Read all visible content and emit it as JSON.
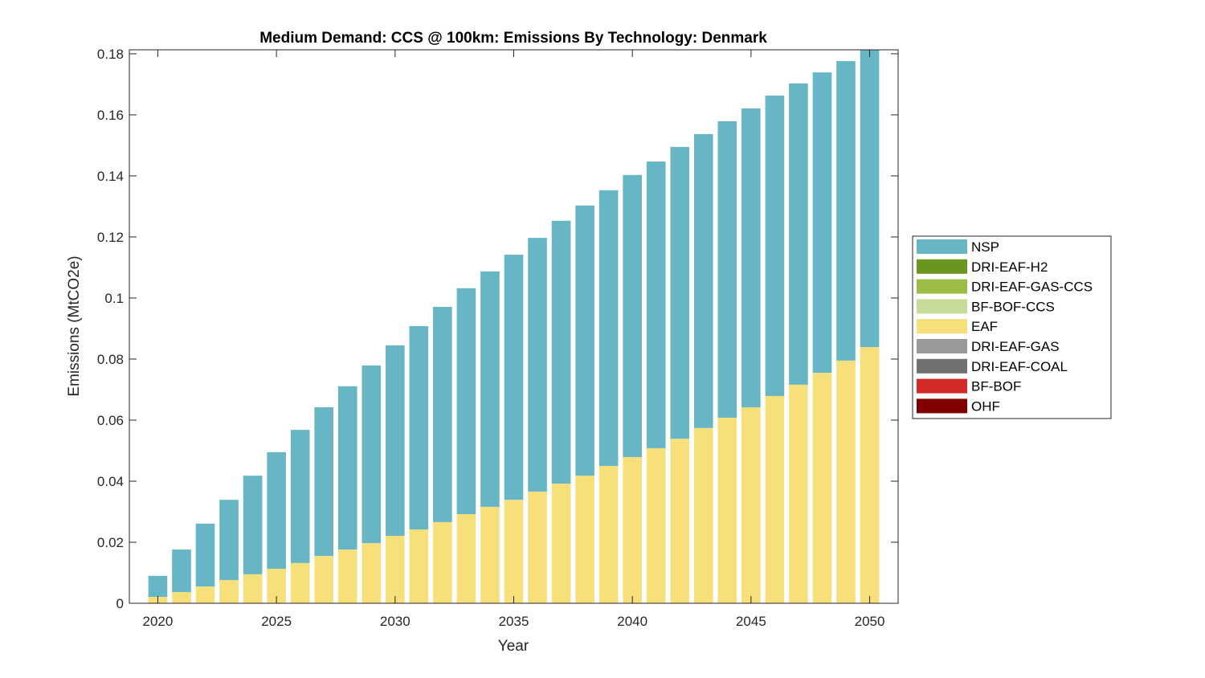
{
  "chart_data": {
    "type": "bar",
    "stacked": true,
    "title": "Medium Demand: CCS @ 100km: Emissions By Technology: Denmark",
    "xlabel": "Year",
    "ylabel": "Emissions (MtCO2e)",
    "xlim": [
      2018.8,
      2051.2
    ],
    "ylim": [
      0,
      0.1813
    ],
    "xticks": [
      2020,
      2025,
      2030,
      2035,
      2040,
      2045,
      2050
    ],
    "xtick_labels": [
      "2020",
      "2025",
      "2030",
      "2035",
      "2040",
      "2045",
      "2050"
    ],
    "yticks": [
      0,
      0.02,
      0.04,
      0.06,
      0.08,
      0.1,
      0.12,
      0.14,
      0.16,
      0.18
    ],
    "ytick_labels": [
      "0",
      "0.02",
      "0.04",
      "0.06",
      "0.08",
      "0.1",
      "0.12",
      "0.14",
      "0.16",
      "0.18"
    ],
    "legend_position": "outside-right",
    "x": [
      2020,
      2021,
      2022,
      2023,
      2024,
      2025,
      2026,
      2027,
      2028,
      2029,
      2030,
      2031,
      2032,
      2033,
      2034,
      2035,
      2036,
      2037,
      2038,
      2039,
      2040,
      2041,
      2042,
      2043,
      2044,
      2045,
      2046,
      2047,
      2048,
      2049,
      2050
    ],
    "series": [
      {
        "name": "OHF",
        "color": "#800000",
        "values": [
          0,
          0,
          0,
          0,
          0,
          0,
          0,
          0,
          0,
          0,
          0,
          0,
          0,
          0,
          0,
          0,
          0,
          0,
          0,
          0,
          0,
          0,
          0,
          0,
          0,
          0,
          0,
          0,
          0,
          0,
          0
        ]
      },
      {
        "name": "BF-BOF",
        "color": "#D22B27",
        "values": [
          0,
          0,
          0,
          0,
          0,
          0,
          0,
          0,
          0,
          0,
          0,
          0,
          0,
          0,
          0,
          0,
          0,
          0,
          0,
          0,
          0,
          0,
          0,
          0,
          0,
          0,
          0,
          0,
          0,
          0,
          0
        ]
      },
      {
        "name": "DRI-EAF-COAL",
        "color": "#707070",
        "values": [
          0,
          0,
          0,
          0,
          0,
          0,
          0,
          0,
          0,
          0,
          0,
          0,
          0,
          0,
          0,
          0,
          0,
          0,
          0,
          0,
          0,
          0,
          0,
          0,
          0,
          0,
          0,
          0,
          0,
          0,
          0
        ]
      },
      {
        "name": "DRI-EAF-GAS",
        "color": "#999999",
        "values": [
          0,
          0,
          0,
          0,
          0,
          0,
          0,
          0,
          0,
          0,
          0,
          0,
          0,
          0,
          0,
          0,
          0,
          0,
          0,
          0,
          0,
          0,
          0,
          0,
          0,
          0,
          0,
          0,
          0,
          0,
          0
        ]
      },
      {
        "name": "EAF",
        "color": "#F7DF7A",
        "values": [
          0.0021,
          0.0037,
          0.0055,
          0.0076,
          0.0095,
          0.0113,
          0.0132,
          0.0155,
          0.0176,
          0.0197,
          0.0221,
          0.0242,
          0.0266,
          0.0292,
          0.0316,
          0.0339,
          0.0366,
          0.0392,
          0.0418,
          0.045,
          0.0479,
          0.0508,
          0.0539,
          0.0574,
          0.0608,
          0.0642,
          0.0679,
          0.0716,
          0.0755,
          0.0795,
          0.0839
        ]
      },
      {
        "name": "BF-BOF-CCS",
        "color": "#C6DB98",
        "values": [
          0,
          0,
          0,
          0,
          0,
          0,
          0,
          0,
          0,
          0,
          0,
          0,
          0,
          0,
          0,
          0,
          0,
          0,
          0,
          0,
          0,
          0,
          0,
          0,
          0,
          0,
          0,
          0,
          0,
          0,
          0
        ]
      },
      {
        "name": "DRI-EAF-GAS-CCS",
        "color": "#9BBD45",
        "values": [
          0,
          0,
          0,
          0,
          0,
          0,
          0,
          0,
          0,
          0,
          0,
          0,
          0,
          0,
          0,
          0,
          0,
          0,
          0,
          0,
          0,
          0,
          0,
          0,
          0,
          0,
          0,
          0,
          0,
          0,
          0
        ]
      },
      {
        "name": "DRI-EAF-H2",
        "color": "#6A961F",
        "values": [
          0,
          0,
          0,
          0,
          0,
          0,
          0,
          0,
          0,
          0,
          0,
          0,
          0,
          0,
          0,
          0,
          0,
          0,
          0,
          0,
          0,
          0,
          0,
          0,
          0,
          0,
          0,
          0,
          0,
          0,
          0
        ]
      },
      {
        "name": "NSP",
        "color": "#67B6C6",
        "values": [
          0.0069,
          0.0139,
          0.0206,
          0.0263,
          0.0323,
          0.0382,
          0.0436,
          0.0487,
          0.0535,
          0.0582,
          0.0624,
          0.0666,
          0.0705,
          0.074,
          0.0771,
          0.0803,
          0.0831,
          0.0861,
          0.0885,
          0.0903,
          0.0924,
          0.0939,
          0.0956,
          0.0963,
          0.0971,
          0.0979,
          0.0984,
          0.0987,
          0.0984,
          0.0981,
          0.0976
        ]
      }
    ],
    "legend_order": [
      "NSP",
      "DRI-EAF-H2",
      "DRI-EAF-GAS-CCS",
      "BF-BOF-CCS",
      "EAF",
      "DRI-EAF-GAS",
      "DRI-EAF-COAL",
      "BF-BOF",
      "OHF"
    ]
  }
}
